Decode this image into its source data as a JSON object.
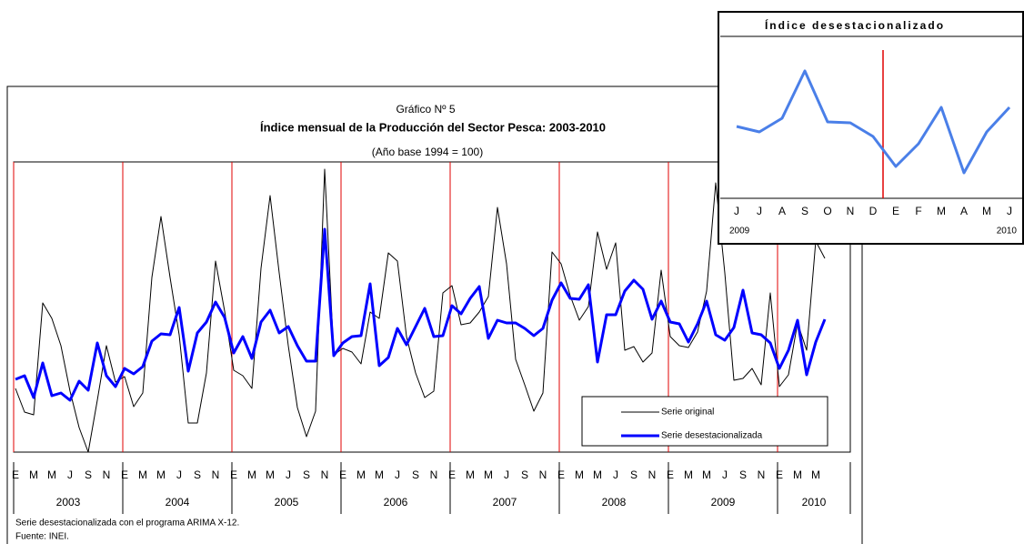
{
  "chart_data": [
    {
      "type": "line",
      "title": "Gráfico Nº 5",
      "subtitle": "Índice mensual de la Producción del Sector Pesca: 2003-2010",
      "note": "(Año base 1994 = 100)",
      "categories": [
        "E",
        null,
        "M",
        null,
        "M",
        null,
        "J",
        null,
        "S",
        null,
        "N",
        null,
        "E",
        null,
        "M",
        null,
        "M",
        null,
        "J",
        null,
        "S",
        null,
        "N",
        null,
        "E",
        null,
        "M",
        null,
        "M",
        null,
        "J",
        null,
        "S",
        null,
        "N",
        null,
        "E",
        null,
        "M",
        null,
        "M",
        null,
        "J",
        null,
        "S",
        null,
        "N",
        null,
        "E",
        null,
        "M",
        null,
        "M",
        null,
        "J",
        null,
        "S",
        null,
        "N",
        null,
        "E",
        null,
        "M",
        null,
        "M",
        null,
        "J",
        null,
        "S",
        null,
        "N",
        null,
        "E",
        null,
        "M",
        null,
        "M",
        null,
        "J",
        null,
        "S",
        null,
        "N",
        null,
        "E",
        null,
        "M",
        null,
        "M",
        null
      ],
      "x_groups": [
        "2003",
        "2004",
        "2005",
        "2006",
        "2007",
        "2008",
        "2009",
        "2010"
      ],
      "ylim": [
        0,
        319
      ],
      "series": [
        {
          "name": "Serie original",
          "color": "#000000",
          "values": [
            70,
            44,
            41,
            164,
            147,
            117,
            67,
            27,
            0,
            57,
            117,
            77,
            83,
            50,
            65,
            192,
            259,
            192,
            129,
            32,
            32,
            87,
            210,
            155,
            90,
            84,
            70,
            202,
            282,
            197,
            117,
            49,
            17,
            45,
            311,
            107,
            114,
            110,
            97,
            154,
            147,
            219,
            210,
            127,
            87,
            60,
            67,
            175,
            183,
            140,
            142,
            154,
            171,
            269,
            207,
            102,
            74,
            45,
            65,
            220,
            207,
            172,
            145,
            160,
            242,
            201,
            230,
            112,
            116,
            99,
            109,
            200,
            127,
            117,
            115,
            132,
            177,
            296,
            197,
            79,
            81,
            92,
            74,
            175,
            72,
            85,
            142,
            112,
            232,
            213
          ]
        },
        {
          "name": "Serie desestacionalizada",
          "color": "#0000ff",
          "values": [
            80,
            84,
            60,
            98,
            62,
            65,
            57,
            78,
            68,
            120,
            84,
            72,
            92,
            86,
            94,
            122,
            130,
            129,
            159,
            89,
            131,
            143,
            165,
            148,
            109,
            127,
            103,
            143,
            156,
            131,
            138,
            117,
            100,
            100,
            245,
            106,
            120,
            127,
            128,
            185,
            95,
            104,
            136,
            118,
            138,
            158,
            127,
            128,
            161,
            152,
            169,
            182,
            125,
            145,
            142,
            142,
            136,
            128,
            136,
            167,
            186,
            169,
            168,
            184,
            99,
            151,
            151,
            177,
            189,
            179,
            146,
            166,
            143,
            141,
            121,
            141,
            166,
            129,
            123,
            137,
            178,
            131,
            129,
            120,
            92,
            112,
            145,
            85,
            121,
            146
          ]
        }
      ],
      "footnotes": [
        "Serie desestacionalizada con el programa ARIMA X-12.",
        "Fuente: INEI."
      ]
    },
    {
      "type": "line",
      "title": "Índice desestacionalizado",
      "categories": [
        "J",
        "J",
        "A",
        "S",
        "O",
        "N",
        "D",
        "E",
        "F",
        "M",
        "A",
        "M",
        "J"
      ],
      "x_groups": [
        "2009",
        "2010"
      ],
      "ylim": [
        0,
        190
      ],
      "series": [
        {
          "color": "#4a7fe8",
          "values": [
            71,
            65,
            80,
            132,
            76,
            75,
            60,
            27,
            52,
            92,
            20,
            65,
            92
          ]
        }
      ]
    }
  ]
}
